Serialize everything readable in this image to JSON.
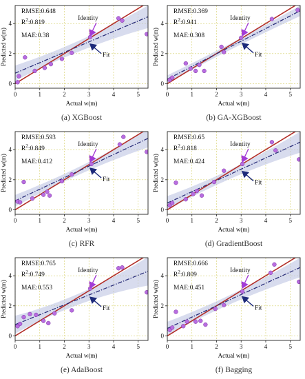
{
  "figure": {
    "ylabel": "Predicted w(m)",
    "xlabel": "Actual w(m)"
  },
  "colors": {
    "identity": "#b3302a",
    "fit": "#2b2f7a",
    "band": "#b8bfe0",
    "point": "#b86de0",
    "arrow_identity": "#a33bd6",
    "arrow_fit": "#1d2a7a",
    "grid": "#d6d06a"
  },
  "chart_data": [
    {
      "type": "scatter",
      "caption": "(a) XGBoost",
      "stats": {
        "rmse": "RMSE:0.648",
        "r2_pre": "R",
        "r2_sup": "2",
        "r2_val": ":0.819",
        "mae": "MAE:0.38"
      },
      "annotations": {
        "identity": "Identity",
        "fit": "Fit"
      },
      "xlabel": "Actual w(m)",
      "ylabel": "Predicted w(m)",
      "xlim": [
        0,
        5.4
      ],
      "ylim": [
        -0.3,
        5.2
      ],
      "xticks": [
        0,
        1,
        2,
        3,
        4,
        5
      ],
      "yticks": [
        0,
        2,
        4
      ],
      "grid": true,
      "points": [
        [
          0.1,
          0.1
        ],
        [
          0.15,
          0.5
        ],
        [
          0.4,
          1.75
        ],
        [
          0.8,
          0.85
        ],
        [
          1.2,
          1.05
        ],
        [
          1.45,
          1.3
        ],
        [
          1.9,
          1.65
        ],
        [
          2.3,
          2.05
        ],
        [
          3.05,
          3.1
        ],
        [
          4.2,
          4.35
        ],
        [
          4.35,
          4.2
        ],
        [
          5.35,
          3.3
        ]
      ],
      "fit_line": [
        [
          0,
          0.7
        ],
        [
          5.4,
          4.45
        ]
      ],
      "band_width": [
        0.35,
        0.75
      ]
    },
    {
      "type": "scatter",
      "caption": "(b) GA-XGBoost",
      "stats": {
        "rmse": "RMSE:0.369",
        "r2_pre": "R",
        "r2_sup": "2",
        "r2_val": ":0.941",
        "mae": "MAE:0.308"
      },
      "annotations": {
        "identity": "Identity",
        "fit": "Fit"
      },
      "xlabel": "Actual w(m)",
      "ylabel": "Predicted w(m)",
      "xlim": [
        0,
        5.4
      ],
      "ylim": [
        -0.3,
        5.2
      ],
      "xticks": [
        0,
        1,
        2,
        3,
        4,
        5
      ],
      "yticks": [
        0,
        2,
        4
      ],
      "grid": true,
      "points": [
        [
          0.1,
          0.25
        ],
        [
          0.2,
          0.4
        ],
        [
          0.75,
          1.35
        ],
        [
          0.95,
          1.0
        ],
        [
          1.15,
          0.85
        ],
        [
          1.3,
          1.25
        ],
        [
          1.5,
          0.85
        ],
        [
          2.2,
          2.45
        ],
        [
          2.3,
          2.1
        ],
        [
          3.0,
          3.05
        ],
        [
          4.25,
          4.3
        ],
        [
          5.3,
          4.9
        ]
      ],
      "fit_line": [
        [
          0,
          0.3
        ],
        [
          5.4,
          4.85
        ]
      ],
      "band_width": [
        0.2,
        0.35
      ]
    },
    {
      "type": "scatter",
      "caption": "(c) RFR",
      "stats": {
        "rmse": "RMSE:0.593",
        "r2_pre": "R",
        "r2_sup": "2",
        "r2_val": ":0.849",
        "mae": "MAE:0.412"
      },
      "annotations": {
        "identity": "Identity",
        "fit": "Fit"
      },
      "xlabel": "Actual w(m)",
      "ylabel": "Predicted w(m)",
      "xlim": [
        0,
        5.4
      ],
      "ylim": [
        -0.3,
        5.2
      ],
      "xticks": [
        0,
        1,
        2,
        3,
        4,
        5
      ],
      "yticks": [
        0,
        2,
        4
      ],
      "grid": true,
      "points": [
        [
          0.1,
          0.55
        ],
        [
          0.2,
          0.5
        ],
        [
          0.35,
          1.85
        ],
        [
          0.7,
          0.75
        ],
        [
          1.15,
          1.0
        ],
        [
          1.3,
          1.2
        ],
        [
          1.4,
          0.95
        ],
        [
          1.9,
          1.9
        ],
        [
          2.3,
          2.35
        ],
        [
          3.1,
          3.05
        ],
        [
          4.25,
          4.35
        ],
        [
          4.4,
          4.85
        ],
        [
          5.35,
          3.85
        ]
      ],
      "fit_line": [
        [
          0,
          0.6
        ],
        [
          5.4,
          4.75
        ]
      ],
      "band_width": [
        0.25,
        0.6
      ]
    },
    {
      "type": "scatter",
      "caption": "(d) GradientBoost",
      "stats": {
        "rmse": "RMSE:0.65",
        "r2_pre": "R",
        "r2_sup": "2",
        "r2_val": ":0.818",
        "mae": "MAE:0.424"
      },
      "annotations": {
        "identity": "Identity",
        "fit": "Fit"
      },
      "xlabel": "Actual w(m)",
      "ylabel": "Predicted w(m)",
      "xlim": [
        0,
        5.4
      ],
      "ylim": [
        -0.3,
        5.2
      ],
      "xticks": [
        0,
        1,
        2,
        3,
        4,
        5
      ],
      "yticks": [
        0,
        2,
        4
      ],
      "grid": true,
      "points": [
        [
          0.1,
          0.3
        ],
        [
          0.2,
          0.45
        ],
        [
          0.35,
          1.8
        ],
        [
          0.75,
          0.7
        ],
        [
          1.05,
          1.05
        ],
        [
          1.2,
          1.25
        ],
        [
          1.4,
          0.95
        ],
        [
          1.9,
          1.85
        ],
        [
          2.3,
          2.6
        ],
        [
          3.05,
          3.05
        ],
        [
          4.25,
          4.5
        ],
        [
          4.4,
          3.95
        ],
        [
          5.35,
          3.35
        ]
      ],
      "fit_line": [
        [
          0,
          0.45
        ],
        [
          5.4,
          4.5
        ]
      ],
      "band_width": [
        0.3,
        0.7
      ]
    },
    {
      "type": "scatter",
      "caption": "(e) AdaBoost",
      "stats": {
        "rmse": "RMSE:0.765",
        "r2_pre": "R",
        "r2_sup": "2",
        "r2_val": ":0.749",
        "mae": "MAE:0.553"
      },
      "annotations": {
        "identity": "Identity",
        "fit": "Fit"
      },
      "xlabel": "Actual w(m)",
      "ylabel": "Predicted w(m)",
      "xlim": [
        0,
        5.4
      ],
      "ylim": [
        -0.3,
        5.2
      ],
      "xticks": [
        0,
        1,
        2,
        3,
        4,
        5
      ],
      "yticks": [
        0,
        2,
        4
      ],
      "grid": true,
      "points": [
        [
          0.1,
          0.65
        ],
        [
          0.2,
          0.8
        ],
        [
          0.35,
          1.25
        ],
        [
          0.6,
          1.45
        ],
        [
          0.85,
          1.4
        ],
        [
          1.15,
          1.0
        ],
        [
          1.35,
          0.85
        ],
        [
          1.6,
          1.5
        ],
        [
          2.3,
          1.7
        ],
        [
          3.05,
          3.15
        ],
        [
          4.2,
          4.5
        ],
        [
          4.35,
          4.55
        ],
        [
          5.35,
          2.9
        ]
      ],
      "fit_line": [
        [
          0,
          0.75
        ],
        [
          5.4,
          4.3
        ]
      ],
      "band_width": [
        0.35,
        0.95
      ]
    },
    {
      "type": "scatter",
      "caption": "(f) Bagging",
      "stats": {
        "rmse": "RMSE:0.666",
        "r2_pre": "R",
        "r2_sup": "2",
        "r2_val": ":0.809",
        "mae": "MAE:0.451"
      },
      "annotations": {
        "identity": "Identity",
        "fit": "Fit"
      },
      "xlabel": "Actual w(m)",
      "ylabel": "Predicted w(m)",
      "xlim": [
        0,
        5.4
      ],
      "ylim": [
        -0.3,
        5.2
      ],
      "xticks": [
        0,
        1,
        2,
        3,
        4,
        5
      ],
      "yticks": [
        0,
        2,
        4
      ],
      "grid": true,
      "points": [
        [
          0.1,
          0.4
        ],
        [
          0.2,
          0.55
        ],
        [
          0.35,
          1.6
        ],
        [
          0.65,
          0.65
        ],
        [
          0.8,
          0.95
        ],
        [
          1.15,
          0.95
        ],
        [
          1.35,
          1.0
        ],
        [
          1.55,
          0.75
        ],
        [
          1.95,
          1.8
        ],
        [
          2.3,
          2.05
        ],
        [
          3.05,
          2.95
        ],
        [
          4.2,
          4.2
        ],
        [
          4.35,
          4.75
        ],
        [
          5.35,
          3.6
        ]
      ],
      "fit_line": [
        [
          0,
          0.5
        ],
        [
          5.4,
          4.55
        ]
      ],
      "band_width": [
        0.3,
        0.65
      ]
    }
  ]
}
